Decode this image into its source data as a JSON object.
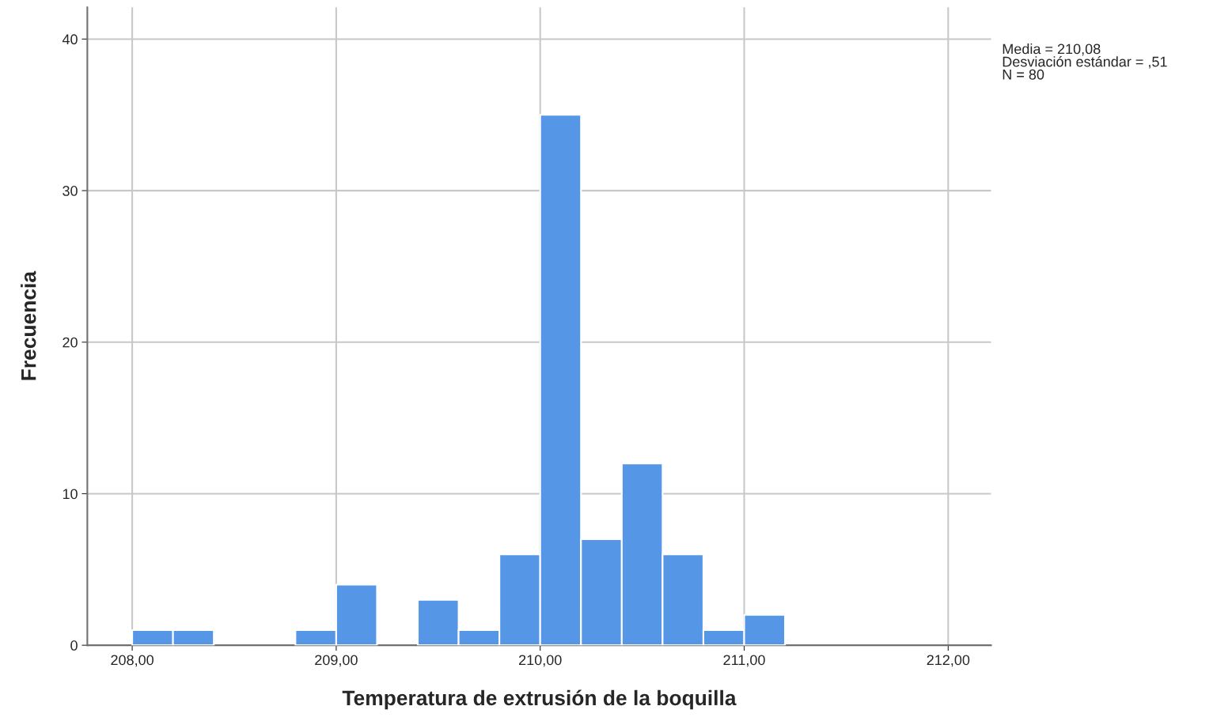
{
  "chart_data": {
    "type": "histogram",
    "xlabel": "Temperatura de extrusión de la boquilla",
    "ylabel": "Frecuencia",
    "bins": [
      208.0,
      208.2,
      208.4,
      208.6,
      208.8,
      209.0,
      209.2,
      209.4,
      209.6,
      209.8,
      210.0,
      210.2,
      210.4,
      210.6,
      210.8,
      211.0,
      211.2
    ],
    "values": [
      1,
      1,
      0,
      0,
      1,
      4,
      0,
      3,
      1,
      6,
      35,
      7,
      12,
      6,
      1,
      2
    ],
    "color": "#5596e6",
    "xlim": [
      207.78,
      212.21
    ],
    "xticks": [
      {
        "value": 208,
        "label": "208,00"
      },
      {
        "value": 209,
        "label": "209,00"
      },
      {
        "value": 210,
        "label": "210,00"
      },
      {
        "value": 211,
        "label": "211,00"
      },
      {
        "value": 212,
        "label": "212,00"
      }
    ],
    "ylim": [
      0,
      42.1
    ],
    "yticks": [
      0,
      10,
      20,
      30,
      40
    ],
    "grid": true,
    "annotations": [
      "Media = 210,08\nDesviación estándar = ,51\nN = 80"
    ]
  }
}
